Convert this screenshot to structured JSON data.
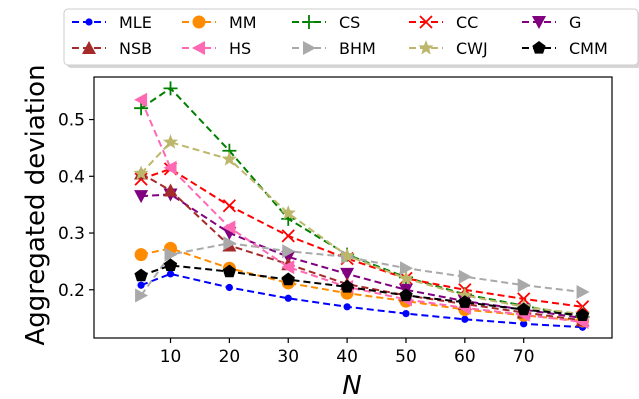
{
  "chart_data": {
    "type": "line",
    "xlabel": "N",
    "ylabel": "Aggregated deviation",
    "x": [
      5,
      10,
      20,
      30,
      40,
      50,
      60,
      70,
      80
    ],
    "xlim": [
      -3,
      85
    ],
    "ylim": [
      0.115,
      0.575
    ],
    "xticks": [
      10,
      20,
      30,
      40,
      50,
      60,
      70
    ],
    "xtick_labels": [
      "10",
      "20",
      "30",
      "40",
      "50",
      "60",
      "70"
    ],
    "yticks": [
      0.2,
      0.3,
      0.4,
      0.5
    ],
    "ytick_labels": [
      "0.2",
      "0.3",
      "0.4",
      "0.5"
    ],
    "grid": false,
    "legend_position": "top",
    "series": [
      {
        "name": "MLE",
        "color": "#0000ff",
        "marker": "dot",
        "values": [
          0.208,
          0.228,
          0.204,
          0.185,
          0.17,
          0.158,
          0.148,
          0.14,
          0.134
        ]
      },
      {
        "name": "MM",
        "color": "#ff8c00",
        "marker": "circle",
        "values": [
          0.262,
          0.273,
          0.238,
          0.212,
          0.194,
          0.18,
          0.165,
          0.155,
          0.145
        ]
      },
      {
        "name": "CS",
        "color": "#008000",
        "marker": "plus",
        "values": [
          0.52,
          0.555,
          0.445,
          0.325,
          0.262,
          0.222,
          0.192,
          0.172,
          0.152
        ]
      },
      {
        "name": "CC",
        "color": "#ff0000",
        "marker": "x",
        "values": [
          0.395,
          0.413,
          0.348,
          0.295,
          0.255,
          0.22,
          0.2,
          0.184,
          0.17
        ]
      },
      {
        "name": "G",
        "color": "#800080",
        "marker": "triangle-down",
        "values": [
          0.365,
          0.368,
          0.3,
          0.258,
          0.228,
          0.2,
          0.18,
          0.165,
          0.15
        ]
      },
      {
        "name": "NSB",
        "color": "#a52a2a",
        "marker": "triangle-up",
        "values": [
          0.405,
          0.375,
          0.278,
          0.245,
          0.21,
          0.19,
          0.175,
          0.16,
          0.146
        ]
      },
      {
        "name": "HS",
        "color": "#ff69b4",
        "marker": "triangle-left",
        "values": [
          0.535,
          0.415,
          0.31,
          0.24,
          0.205,
          0.183,
          0.168,
          0.156,
          0.143
        ]
      },
      {
        "name": "BHM",
        "color": "#a9a9a9",
        "marker": "triangle-right",
        "values": [
          0.19,
          0.262,
          0.282,
          0.268,
          0.258,
          0.238,
          0.223,
          0.208,
          0.196
        ]
      },
      {
        "name": "CWJ",
        "color": "#bdb76b",
        "marker": "star",
        "values": [
          0.405,
          0.46,
          0.43,
          0.335,
          0.26,
          0.22,
          0.19,
          0.17,
          0.157
        ]
      },
      {
        "name": "CMM",
        "color": "#000000",
        "marker": "pentagon",
        "values": [
          0.225,
          0.243,
          0.232,
          0.218,
          0.205,
          0.19,
          0.178,
          0.165,
          0.155
        ]
      }
    ]
  }
}
